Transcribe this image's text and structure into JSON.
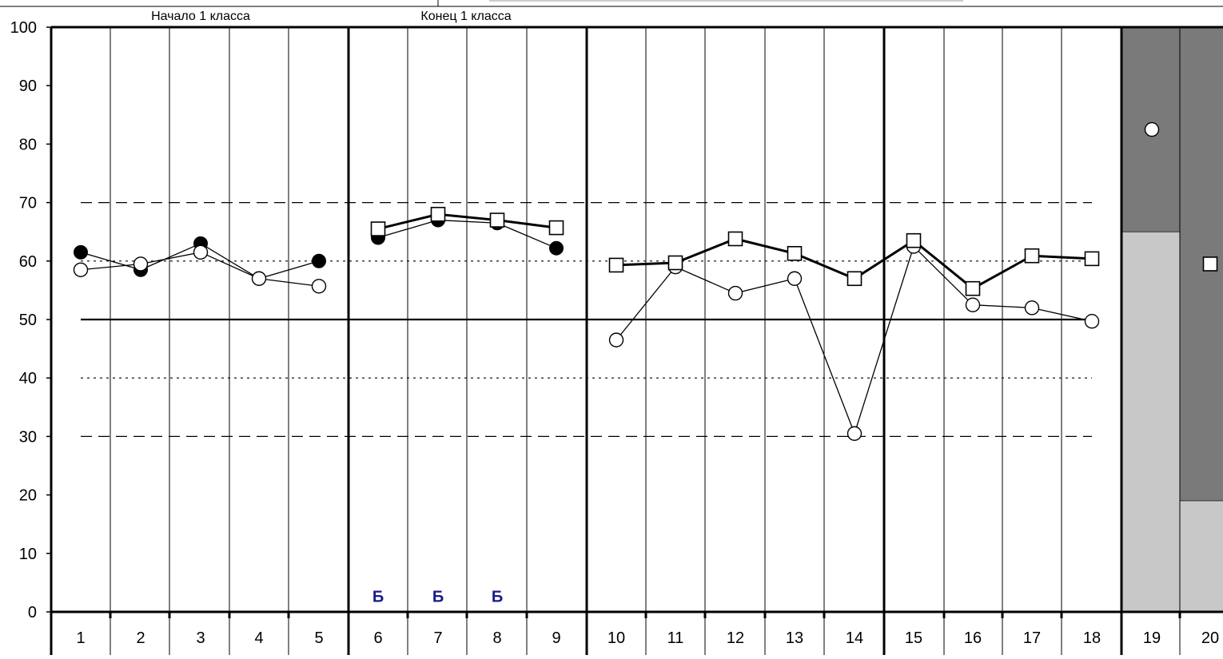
{
  "chart_data": {
    "type": "line",
    "section_labels": [
      "Начало 1 класса",
      "Конец 1 класса"
    ],
    "y_ticks": [
      0,
      10,
      20,
      30,
      40,
      50,
      60,
      70,
      80,
      90,
      100
    ],
    "ylim": [
      0,
      100
    ],
    "x_categories": [
      "1",
      "2",
      "3",
      "4",
      "5",
      "6",
      "7",
      "8",
      "9",
      "10",
      "11",
      "12",
      "13",
      "14",
      "15",
      "16",
      "17",
      "18",
      "19",
      "20"
    ],
    "group_separators_after": [
      5,
      9,
      14,
      18
    ],
    "reference_lines": [
      {
        "value": 70,
        "style": "dashed"
      },
      {
        "value": 60,
        "style": "dotted"
      },
      {
        "value": 50,
        "style": "solid"
      },
      {
        "value": 40,
        "style": "dotted"
      },
      {
        "value": 30,
        "style": "dashed"
      }
    ],
    "series": [
      {
        "marker": "filled-circle",
        "line": "thin",
        "segments": [
          [
            [
              1,
              61.5
            ],
            [
              2,
              58.5
            ],
            [
              3,
              63
            ],
            [
              4,
              57
            ],
            [
              5,
              60
            ]
          ],
          [
            [
              6,
              64
            ],
            [
              7,
              67
            ],
            [
              8,
              66.5
            ],
            [
              9,
              62.2
            ]
          ]
        ]
      },
      {
        "marker": "open-circle",
        "line": "thin",
        "segments": [
          [
            [
              1,
              58.5
            ],
            [
              2,
              59.5
            ],
            [
              3,
              61.5
            ],
            [
              4,
              57
            ],
            [
              5,
              55.7
            ]
          ],
          [
            [
              10,
              46.5
            ],
            [
              11,
              59
            ],
            [
              12,
              54.5
            ],
            [
              13,
              57
            ],
            [
              14,
              30.5
            ],
            [
              15,
              62.5
            ],
            [
              16,
              52.5
            ],
            [
              17,
              52
            ],
            [
              18,
              49.7
            ]
          ],
          [
            [
              19,
              82.5
            ]
          ]
        ]
      },
      {
        "marker": "open-square",
        "line": "thick",
        "segments": [
          [
            [
              6,
              65.5
            ],
            [
              7,
              68
            ],
            [
              8,
              67
            ],
            [
              9,
              65.7
            ]
          ],
          [
            [
              10,
              59.3
            ],
            [
              11,
              59.7
            ],
            [
              12,
              63.8
            ],
            [
              13,
              61.3
            ],
            [
              14,
              57
            ],
            [
              15,
              63.5
            ],
            [
              16,
              55.3
            ],
            [
              17,
              60.9
            ],
            [
              18,
              60.4
            ]
          ],
          [
            [
              20,
              59.5
            ]
          ]
        ]
      }
    ],
    "annotations": [
      {
        "text": "Б",
        "x": 6,
        "y": 2.5,
        "color": "#1a1a8c"
      },
      {
        "text": "Б",
        "x": 7,
        "y": 2.5,
        "color": "#1a1a8c"
      },
      {
        "text": "Б",
        "x": 8,
        "y": 2.5,
        "color": "#1a1a8c"
      }
    ],
    "stacked_columns": [
      {
        "x": 19,
        "light_to": 65,
        "dark_to": 100
      },
      {
        "x": 20,
        "light_to": 19,
        "dark_to": 100
      }
    ],
    "colors": {
      "light_gray": "#c8c8c8",
      "dark_gray": "#7a7a7a",
      "axis": "#000000",
      "grid": "#000000"
    }
  }
}
